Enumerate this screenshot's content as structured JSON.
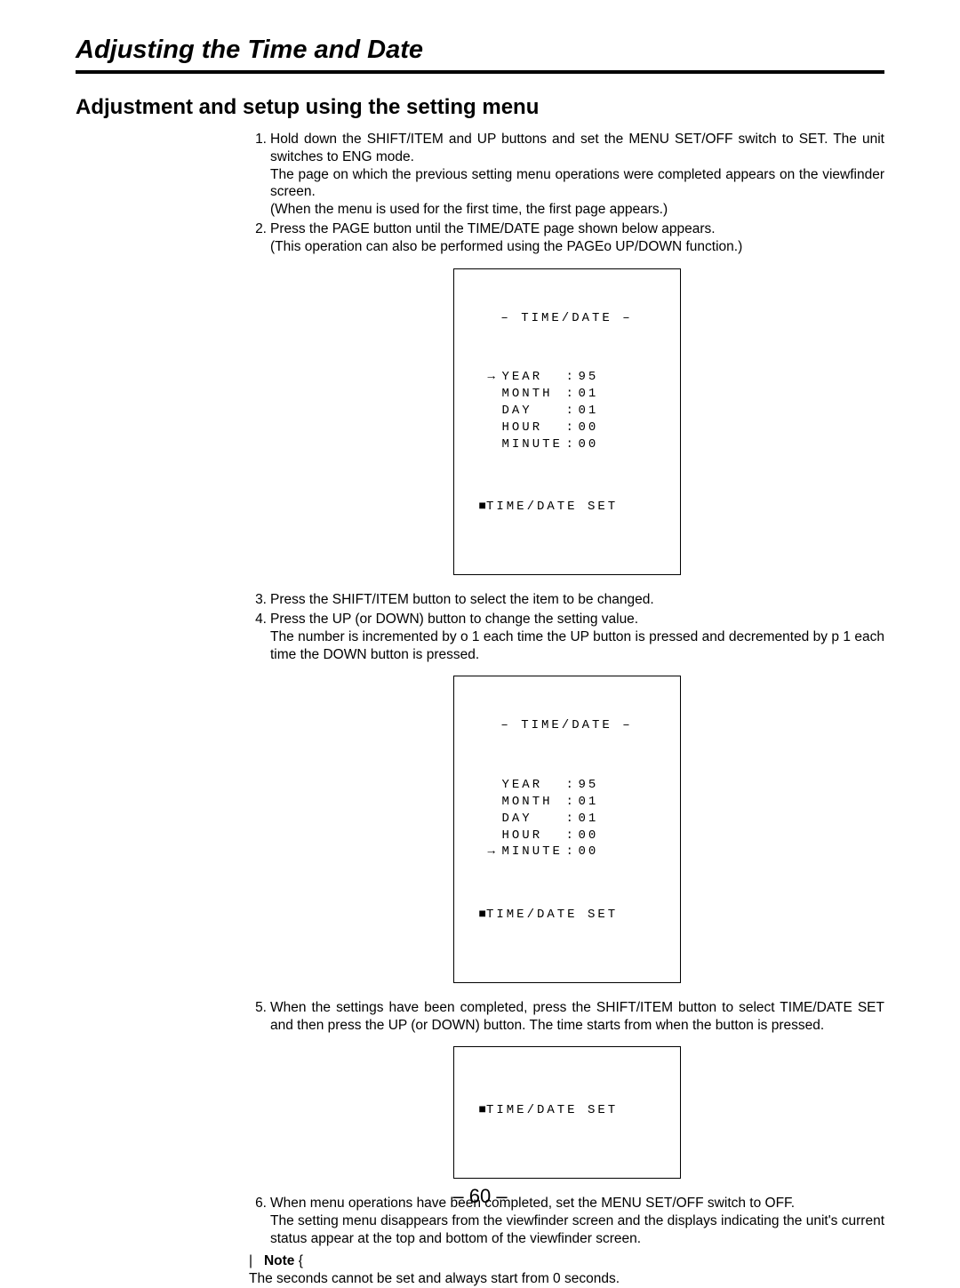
{
  "titles": {
    "h1": "Adjusting the Time and Date",
    "h2": "Adjustment and setup using the setting menu"
  },
  "steps": {
    "s1": {
      "num": "1.",
      "p1": "Hold down the SHIFT/ITEM and UP buttons and set the MENU SET/OFF switch to SET. The unit switches to ENG mode.",
      "p2": "The page on which the previous setting menu operations were completed appears on the viewfinder screen.",
      "p3": "(When the menu is used for the first time, the first page appears.)"
    },
    "s2": {
      "num": "2.",
      "p1": "Press the PAGE button until the TIME/DATE page shown below appears.",
      "p2": "(This operation can also be performed using the PAGEo UP/DOWN function.)"
    },
    "s3": {
      "num": "3.",
      "p1": "Press the SHIFT/ITEM button to select the item to be changed."
    },
    "s4": {
      "num": "4.",
      "p1": "Press the UP (or DOWN) button to change the setting value.",
      "p2": "The number is incremented by o 1 each time the UP button is pressed and decremented by p 1 each time the DOWN button is pressed."
    },
    "s5": {
      "num": "5.",
      "p1": "When the settings have been completed, press the SHIFT/ITEM button to select TIME/DATE SET and then press the UP (or DOWN) button. The time starts from when the button is pressed."
    },
    "s6": {
      "num": "6.",
      "p1": "When menu operations have been completed, set the MENU SET/OFF switch to OFF.",
      "p2": "The setting menu disappears from the viewfinder screen and the displays indicating the unit's current status appear at the top and bottom of the viewfinder screen."
    }
  },
  "screens": {
    "title": "– TIME/DATE –",
    "set": "TIME/DATE SET",
    "arrow": "→",
    "square": "■",
    "a": {
      "rows": [
        {
          "arrow": "→",
          "label": "YEAR",
          "val": "95"
        },
        {
          "arrow": "",
          "label": "MONTH",
          "val": "01"
        },
        {
          "arrow": "",
          "label": "DAY",
          "val": "01"
        },
        {
          "arrow": "",
          "label": "HOUR",
          "val": "00"
        },
        {
          "arrow": "",
          "label": "MINUTE",
          "val": "00"
        }
      ]
    },
    "b": {
      "rows": [
        {
          "arrow": "",
          "label": "YEAR",
          "val": "95"
        },
        {
          "arrow": "",
          "label": "MONTH",
          "val": "01"
        },
        {
          "arrow": "",
          "label": "DAY",
          "val": "01"
        },
        {
          "arrow": "",
          "label": "HOUR",
          "val": "00"
        },
        {
          "arrow": "→",
          "label": "MINUTE",
          "val": "00"
        }
      ]
    }
  },
  "note": {
    "open": "|",
    "label": "Note",
    "close": "{",
    "text": "The seconds cannot be set and always start from 0 seconds."
  },
  "page_number": "– 60 –"
}
